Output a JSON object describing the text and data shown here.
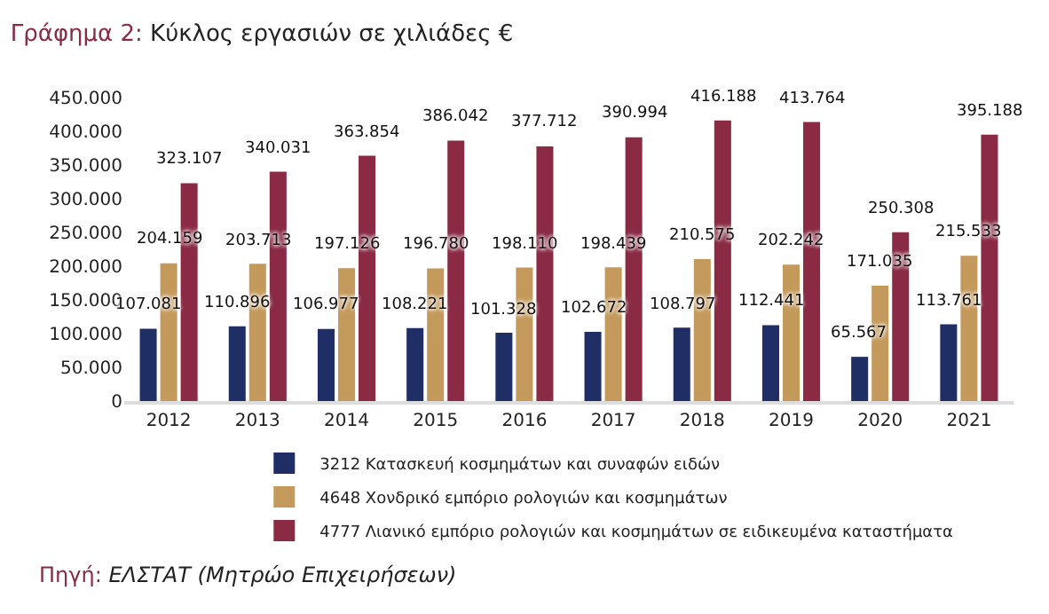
{
  "chart_data": {
    "type": "bar",
    "title": "Γράφημα 2: Κύκλος εργασιών σε χιλιάδες €",
    "categories": [
      "2012",
      "2013",
      "2014",
      "2015",
      "2016",
      "2017",
      "2018",
      "2019",
      "2020",
      "2021"
    ],
    "series": [
      {
        "name": "3212 Κατασκευή κοσμημάτων και συναφών ειδών",
        "color": "#1f2f66",
        "values": [
          107081,
          110896,
          106977,
          108221,
          101328,
          102672,
          108797,
          112441,
          65567,
          113761
        ],
        "value_labels": [
          "107.081",
          "110.896",
          "106.977",
          "108.221",
          "101.328",
          "102.672",
          "108.797",
          "112.441",
          "65.567",
          "113.761"
        ]
      },
      {
        "name": "4648 Χονδρικό εμπόριο ρολογιών και κοσμημάτων",
        "color": "#c49a5c",
        "values": [
          204159,
          203713,
          197126,
          196780,
          198110,
          198439,
          210575,
          202242,
          171035,
          215533
        ],
        "value_labels": [
          "204.159",
          "203.713",
          "197.126",
          "196.780",
          "198.110",
          "198.439",
          "210.575",
          "202.242",
          "171.035",
          "215.533"
        ]
      },
      {
        "name": "4777 Λιανικό εμπόριο ρολογιών και κοσμημάτων σε ειδικευμένα καταστήματα",
        "color": "#8a2a45",
        "values": [
          323107,
          340031,
          363854,
          386042,
          377712,
          390994,
          416188,
          413764,
          250308,
          395188
        ],
        "value_labels": [
          "323.107",
          "340.031",
          "363.854",
          "386.042",
          "377.712",
          "390.994",
          "416.188",
          "413.764",
          "250.308",
          "395.188"
        ]
      }
    ],
    "ylim": [
      0,
      450000
    ],
    "yticks": [
      0,
      {
        "value": 50000,
        "label": "50.000"
      },
      {
        "value": 100000,
        "label": "100.000"
      },
      {
        "value": 150000,
        "label": "150.000"
      },
      {
        "value": 200000,
        "label": "200.000"
      },
      {
        "value": 250000,
        "label": "250.000"
      },
      {
        "value": 300000,
        "label": "300.000"
      },
      {
        "value": 350000,
        "label": "350.000"
      },
      {
        "value": 400000,
        "label": "400.000"
      },
      {
        "value": 450000,
        "label": "450.000"
      }
    ],
    "annotations": [
      "Πηγή: ΕΛΣΤΑΤ (Μητρώο Επιχειρήσεων)"
    ],
    "legend": "bottom"
  }
}
